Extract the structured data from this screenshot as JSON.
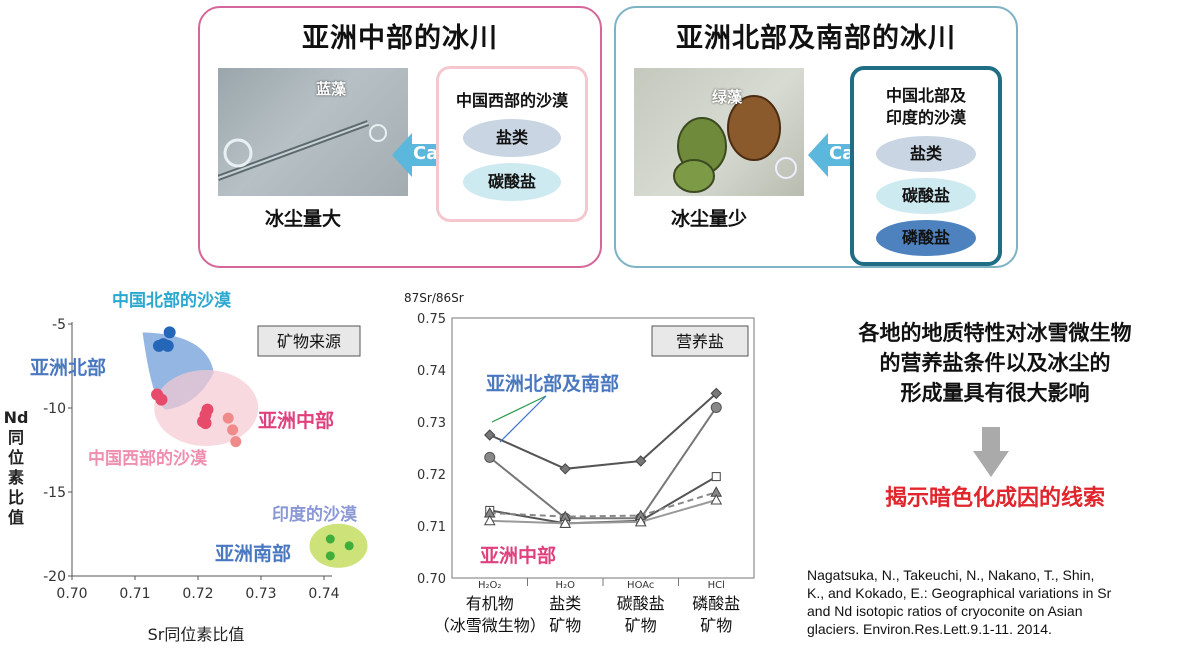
{
  "top_left": {
    "title": "亚洲中部的冰川",
    "photo_label": "蓝藻",
    "dust_label": "冰尘量大",
    "source_box_title": "中国西部的沙漠",
    "minerals": [
      "盐类",
      "碳酸盐"
    ],
    "arrow_label": "Ca"
  },
  "top_right": {
    "title": "亚洲北部及南部的冰川",
    "photo_label": "绿藻",
    "dust_label": "冰尘量少",
    "source_box_title_line1": "中国北部及",
    "source_box_title_line2": "印度的沙漠",
    "minerals": [
      "盐类",
      "碳酸盐",
      "磷酸盐"
    ],
    "arrow_label": "Ca"
  },
  "colors": {
    "panel_left_border": "#d4679a",
    "panel_right_border": "#7fb2c3",
    "box_left_border": "#f3c9cf",
    "box_right_border": "#1f6e86",
    "arrow_fill": "#5bb7dc",
    "north_blue": "#4a78c0",
    "central_pink": "#e0407e",
    "west_pink": "#f08eb0",
    "china_north_cyan": "#2aa8d0",
    "india_lav": "#8a98d6",
    "conclusion_red": "#e0262c"
  },
  "chart_data": [
    {
      "type": "scatter",
      "title": "",
      "box_label": "矿物来源",
      "xlabel": "Sr同位素比值",
      "ylabel": "Nd同位素比值",
      "xlim": [
        0.7,
        0.74
      ],
      "ylim": [
        -20,
        -5
      ],
      "xticks": [
        "0.70",
        "0.71",
        "0.72",
        "0.73",
        "0.74"
      ],
      "yticks": [
        "-5",
        "-10",
        "-15",
        "-20"
      ],
      "grid": false,
      "region_labels": {
        "china_north": "中国北部的沙漠",
        "asia_north": "亚洲北部",
        "asia_central": "亚洲中部",
        "china_west": "中国西部的沙漠",
        "india": "印度的沙漠",
        "asia_south": "亚洲南部"
      },
      "series": [
        {
          "name": "亚洲北部",
          "points": [
            [
              0.7145,
              -6.2
            ],
            [
              0.7155,
              -5.5
            ],
            [
              0.7152,
              -6.3
            ],
            [
              0.7138,
              -6.3
            ]
          ]
        },
        {
          "name": "亚洲中部(冰川)",
          "points": [
            [
              0.7135,
              -9.2
            ],
            [
              0.7142,
              -9.5
            ],
            [
              0.7215,
              -10.1
            ],
            [
              0.7212,
              -10.4
            ],
            [
              0.7208,
              -10.8
            ],
            [
              0.7212,
              -10.9
            ]
          ]
        },
        {
          "name": "中国西部的沙漠",
          "points": [
            [
              0.7248,
              -10.6
            ],
            [
              0.7255,
              -11.3
            ],
            [
              0.726,
              -12.0
            ]
          ]
        },
        {
          "name": "亚洲南部",
          "points": [
            [
              0.741,
              -17.8
            ],
            [
              0.744,
              -18.2
            ],
            [
              0.741,
              -18.8
            ]
          ]
        }
      ]
    },
    {
      "type": "line",
      "title": "",
      "box_label": "营养盐",
      "ylabel": "87Sr/86Sr",
      "ylim": [
        0.7,
        0.75
      ],
      "yticks": [
        "0.75",
        "0.74",
        "0.73",
        "0.72",
        "0.71",
        "0.70"
      ],
      "categories": [
        "H2O2",
        "H2O",
        "HOAc",
        "HCl"
      ],
      "category_labels": [
        [
          "有机物",
          "（冰雪微生物）"
        ],
        [
          "盐类",
          "矿物"
        ],
        [
          "碳酸盐",
          "矿物"
        ],
        [
          "磷酸盐",
          "矿物"
        ]
      ],
      "group_labels": {
        "north_south": "亚洲北部及南部",
        "central": "亚洲中部"
      },
      "series": [
        {
          "values": [
            0.7275,
            0.721,
            0.7225,
            0.7355
          ]
        },
        {
          "values": [
            0.7232,
            0.7115,
            0.7115,
            0.7328
          ]
        },
        {
          "values": [
            0.713,
            0.7105,
            0.711,
            0.7195
          ]
        },
        {
          "values": [
            0.7125,
            0.7118,
            0.712,
            0.7165
          ]
        },
        {
          "values": [
            0.711,
            0.7105,
            0.7108,
            0.715
          ]
        }
      ]
    }
  ],
  "conclusion": {
    "lines": [
      "各地的地质特性对冰雪微生物",
      "的营养盐条件以及冰尘的",
      "形成量具有很大影响"
    ],
    "result": "揭示暗色化成因的线索"
  },
  "reference": {
    "lines": [
      "Nagatsuka, N., Takeuchi, N., Nakano, T., Shin,",
      "K., and Kokado, E.: Geographical variations in Sr",
      "and Nd isotopic ratios of cryoconite on Asian",
      "glaciers. Environ.Res.Lett.9.1-11. 2014."
    ]
  }
}
